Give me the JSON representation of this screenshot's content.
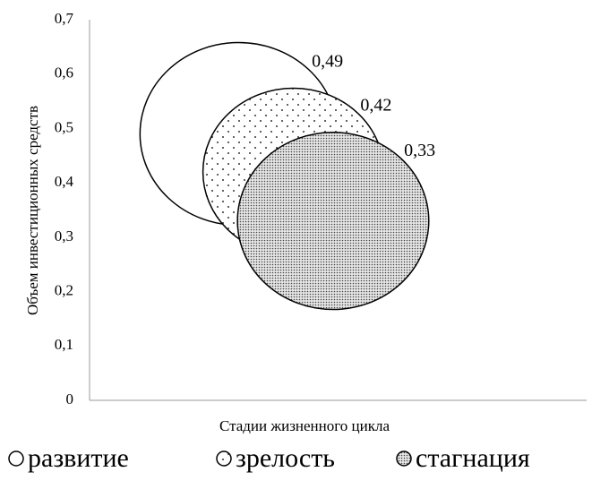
{
  "chart_data": {
    "type": "bubble",
    "ylabel": "Объем инвестиционных средств",
    "xlabel": "Стадии жизненного цикла",
    "xlim": [
      0,
      1
    ],
    "ylim": [
      0,
      0.7
    ],
    "yticks": [
      0,
      {
        "value": 0.1,
        "label": "0,1"
      },
      {
        "value": 0.2,
        "label": "0,2"
      },
      {
        "value": 0.3,
        "label": "0,3"
      },
      {
        "value": 0.4,
        "label": "0,4"
      },
      {
        "value": 0.5,
        "label": "0,5"
      },
      {
        "value": 0.6,
        "label": "0,6"
      },
      {
        "value": 0.7,
        "label": "0,7"
      }
    ],
    "legend": "bottom",
    "series": [
      {
        "name": "развитие",
        "color": "#ffffff",
        "pattern": "none",
        "x": [
          0.3
        ],
        "values": [
          0.49
        ],
        "sizes": [
          100
        ],
        "value_labels": [
          "0,49"
        ]
      },
      {
        "name": "зрелость",
        "color": "#ffffff",
        "pattern": "sparse-dots",
        "x": [
          0.41
        ],
        "values": [
          0.42
        ],
        "sizes": [
          84
        ],
        "value_labels": [
          "0,42"
        ]
      },
      {
        "name": "стагнация",
        "color": "#ffffff",
        "pattern": "dense-dots",
        "x": [
          0.49
        ],
        "values": [
          0.33
        ],
        "sizes": [
          94
        ],
        "value_labels": [
          "0,33"
        ]
      }
    ]
  }
}
